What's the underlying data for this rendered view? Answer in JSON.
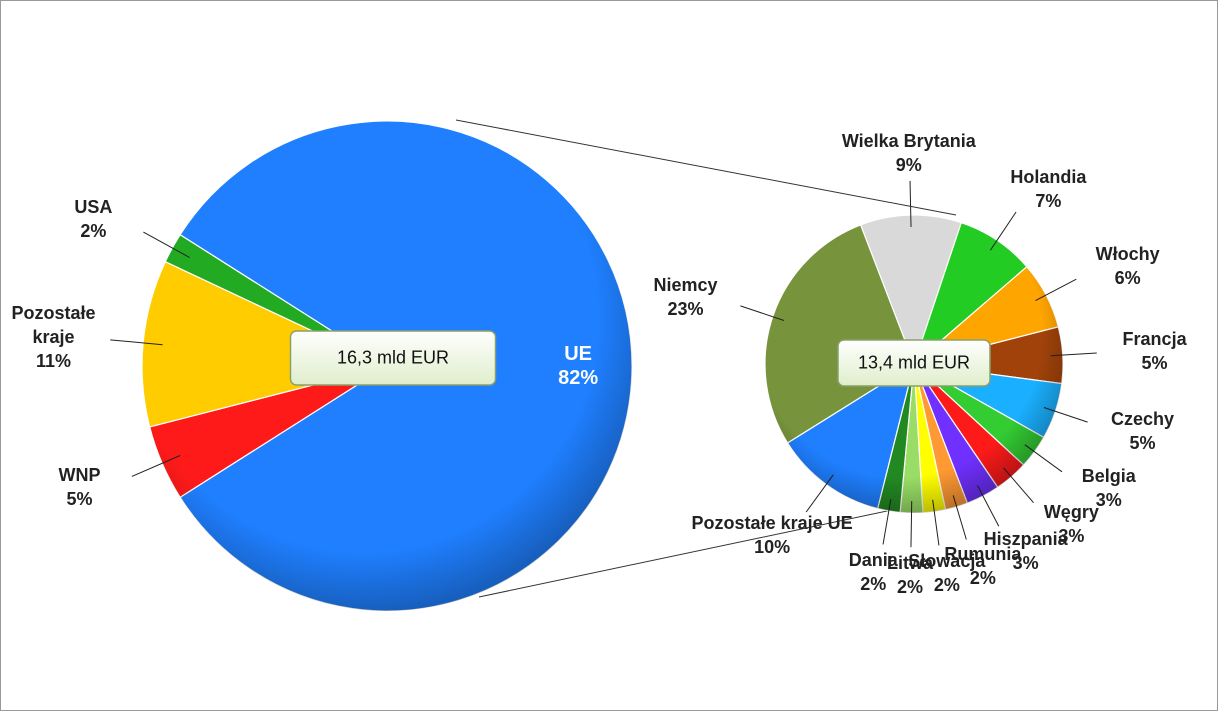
{
  "chart_data": [
    {
      "type": "pie",
      "annotation": "16,3 mld EUR",
      "categories": [
        "UE",
        "WNP",
        "Pozostałe kraje",
        "USA"
      ],
      "values": [
        82,
        5,
        11,
        2
      ],
      "value_labels": [
        "82%",
        "5%",
        "11%",
        "2%"
      ],
      "colors": [
        "#1f7fff",
        "#ff1a1a",
        "#ffcc00",
        "#22aa22"
      ]
    },
    {
      "type": "pie",
      "annotation": "13,4 mld EUR",
      "categories": [
        "Wielka Brytania",
        "Holandia",
        "Włochy",
        "Francja",
        "Czechy",
        "Belgia",
        "Węgry",
        "Hiszpania",
        "Rumunia",
        "Słowacja",
        "Litwa",
        "Dania",
        "Pozostałe kraje UE",
        "Niemcy"
      ],
      "values": [
        9,
        7,
        6,
        5,
        5,
        3,
        3,
        3,
        2,
        2,
        2,
        2,
        10,
        23
      ],
      "value_labels": [
        "9%",
        "7%",
        "6%",
        "5%",
        "5%",
        "3%",
        "3%",
        "3%",
        "2%",
        "2%",
        "2%",
        "2%",
        "10%",
        "23%"
      ],
      "colors": [
        "#d9d9d9",
        "#22cc22",
        "#ffa500",
        "#a0420a",
        "#1ab0ff",
        "#33cc33",
        "#ff1a1a",
        "#7030ff",
        "#ff9933",
        "#ffff00",
        "#99dd66",
        "#228822",
        "#1f7fff",
        "#77933c"
      ]
    }
  ]
}
